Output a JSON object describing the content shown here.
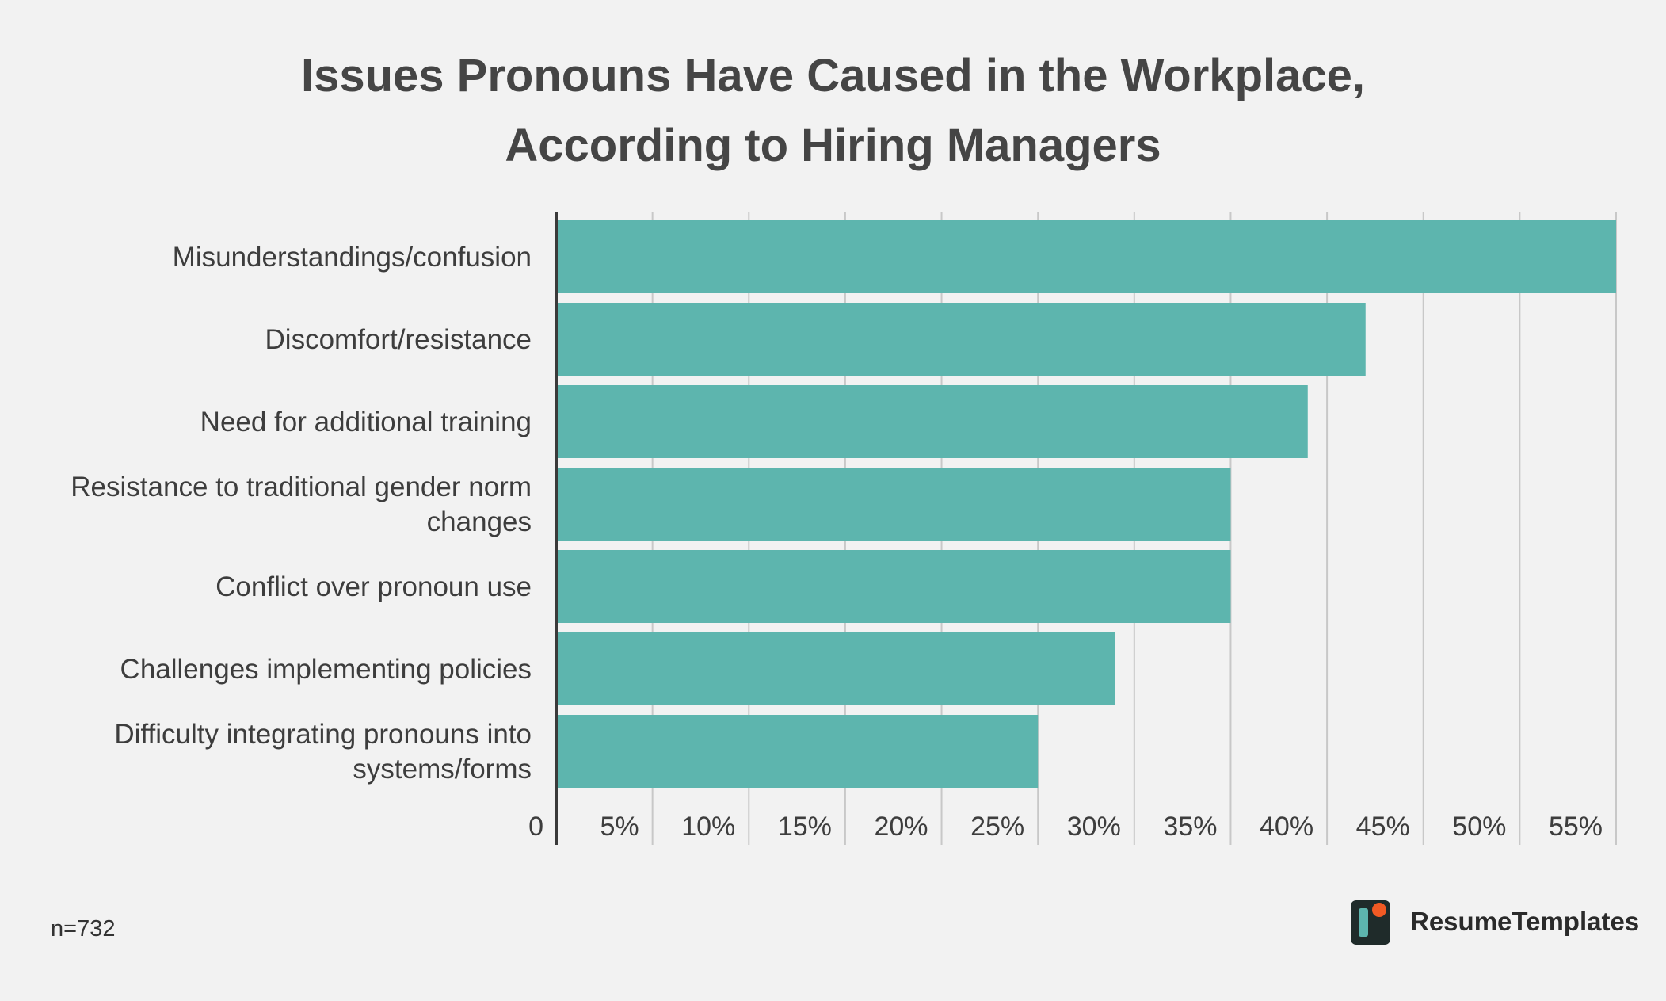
{
  "chart_data": {
    "type": "bar",
    "orientation": "horizontal",
    "title": "Issues Pronouns Have Caused in the Workplace, According to Hiring Managers",
    "title_lines": [
      "Issues Pronouns Have Caused in the Workplace,",
      "According to Hiring Managers"
    ],
    "categories": [
      "Misunderstandings/confusion",
      "Discomfort/resistance",
      "Need for additional training",
      "Resistance to traditional gender norm changes",
      "Conflict over pronoun use",
      "Challenges implementing policies",
      "Difficulty integrating pronouns into systems/forms"
    ],
    "category_lines": [
      [
        "Misunderstandings/confusion"
      ],
      [
        "Discomfort/resistance"
      ],
      [
        "Need for additional training"
      ],
      [
        "Resistance to traditional gender norm",
        "changes"
      ],
      [
        "Conflict over pronoun use"
      ],
      [
        "Challenges implementing policies"
      ],
      [
        "Difficulty integrating pronouns into",
        "systems/forms"
      ]
    ],
    "values": [
      55,
      42,
      39,
      35,
      35,
      29,
      25
    ],
    "xlim": [
      0,
      55
    ],
    "xticks": [
      0,
      5,
      10,
      15,
      20,
      25,
      30,
      35,
      40,
      45,
      50,
      55
    ],
    "xtick_labels": [
      "0",
      "5%",
      "10%",
      "15%",
      "20%",
      "25%",
      "30%",
      "35%",
      "40%",
      "45%",
      "50%",
      "55%"
    ],
    "grid": true,
    "bar_color": "#5db5ae",
    "grid_color": "#c8c8c8",
    "axis_color": "#3a3a3a"
  },
  "footnote": "n=732",
  "brand": {
    "name": "ResumeTemplates",
    "icon": "resume-templates-logo-icon",
    "logo_colors": {
      "tile": "#1f2b2a",
      "bar": "#5db5ae",
      "dot": "#f15a24"
    }
  }
}
